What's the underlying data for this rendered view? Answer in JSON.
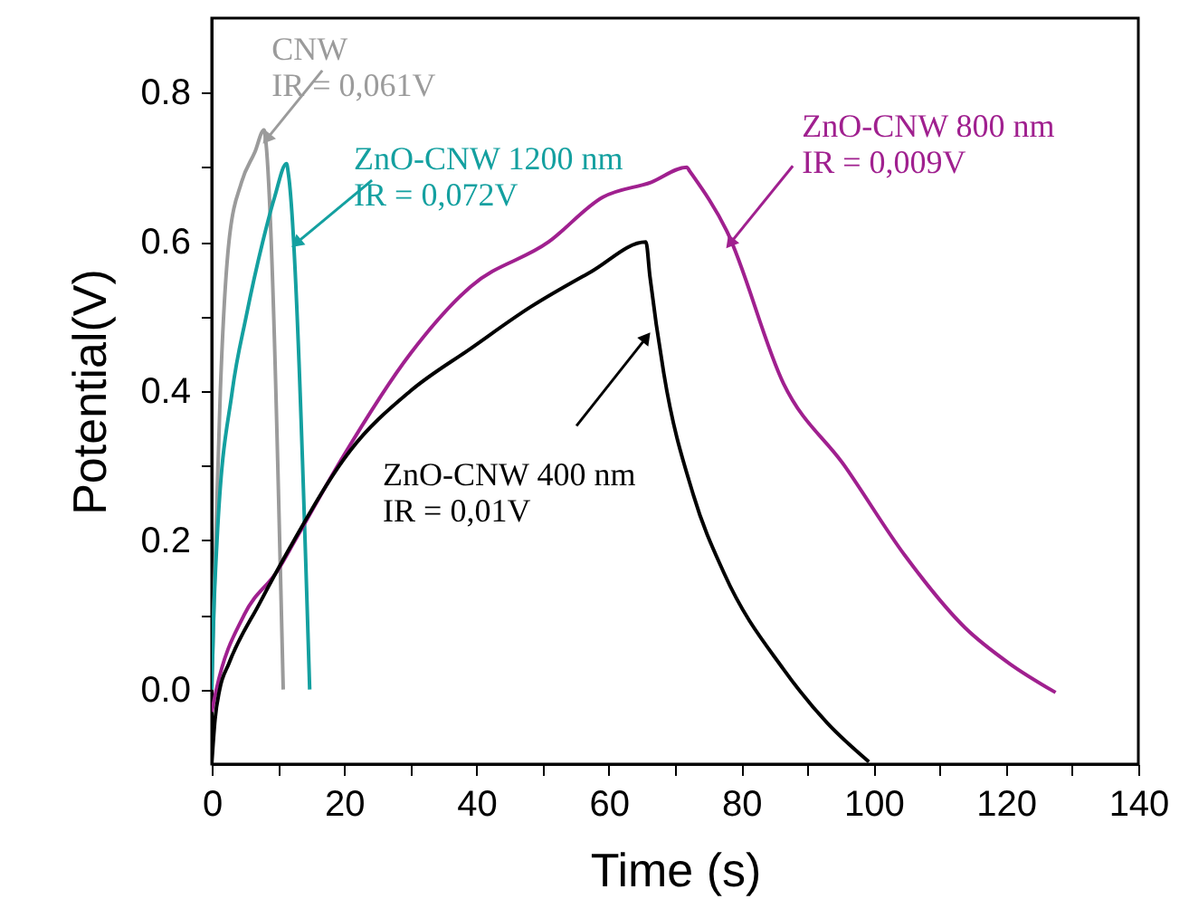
{
  "chart_data": {
    "type": "line",
    "xlabel": "Time (s)",
    "ylabel": "Potential(V)",
    "xlim": [
      0,
      140
    ],
    "ylim": [
      -0.1,
      0.9
    ],
    "xticks": [
      0,
      {
        "value": 10,
        "label": null
      },
      20,
      {
        "value": 30,
        "label": null
      },
      40,
      {
        "value": 50,
        "label": null
      },
      60,
      {
        "value": 70,
        "label": null
      },
      80,
      {
        "value": 90,
        "label": null
      },
      100,
      {
        "value": 110,
        "label": null
      },
      120,
      {
        "value": 130,
        "label": null
      },
      140
    ],
    "yticks": [
      {
        "value": 0,
        "label": "0.0"
      },
      {
        "value": 0.1,
        "label": null
      },
      {
        "value": 0.2,
        "label": "0.2"
      },
      {
        "value": 0.3,
        "label": null
      },
      {
        "value": 0.4,
        "label": "0.4"
      },
      {
        "value": 0.5,
        "label": null
      },
      {
        "value": 0.6,
        "label": "0.6"
      },
      {
        "value": 0.7,
        "label": null
      },
      {
        "value": 0.8,
        "label": "0.8"
      }
    ],
    "grid": false,
    "marker": "none",
    "line_style": "solid",
    "series": [
      {
        "color": "#9b9b9b",
        "x": [
          0,
          0.3,
          0.6,
          1.3,
          2.6,
          4.5,
          6.5,
          7.9,
          8.1,
          10.8
        ],
        "values": [
          0,
          0.1,
          0.2,
          0.4,
          0.6,
          0.68,
          0.72,
          0.75,
          0.74,
          0
        ]
      },
      {
        "color": "#14a0a0",
        "x": [
          0,
          0.3,
          0.8,
          3.1,
          5.2,
          7.7,
          9.5,
          11.3,
          11.6,
          14.8
        ],
        "values": [
          0,
          0.1,
          0.2,
          0.4,
          0.5,
          0.6,
          0.66,
          0.705,
          0.69,
          0
        ]
      },
      {
        "color": "#a0208f",
        "x": [
          0,
          0.7,
          4.9,
          10,
          12.6,
          19.5,
          30,
          39.1,
          50.9,
          59.1,
          66.4,
          71.8,
          72.2,
          77.8,
          86.4,
          95.6,
          104.7,
          113.8,
          120.5,
          127.5
        ],
        "values": [
          -0.03,
          0,
          0.1,
          0.16,
          0.2,
          0.307,
          0.45,
          0.54,
          0.6,
          0.66,
          0.68,
          0.7,
          0.695,
          0.615,
          0.41,
          0.3,
          0.18,
          0.083,
          0.035,
          -0.004
        ]
      },
      {
        "color": "#000000",
        "x": [
          0,
          0.5,
          1.2,
          2.6,
          7.2,
          11.8,
          20.9,
          30,
          39.1,
          48.2,
          57.3,
          65.6,
          66.2,
          68.3,
          72.8,
          77.4,
          86.4,
          93,
          99.3
        ],
        "values": [
          -0.1,
          -0.04,
          0,
          0.035,
          0.115,
          0.19,
          0.32,
          0.4,
          0.457,
          0.513,
          0.56,
          0.6,
          0.554,
          0.424,
          0.26,
          0.156,
          0.027,
          -0.045,
          -0.097
        ]
      }
    ],
    "annotations": [
      {
        "text": "CNW\nIR = 0,061V",
        "x": 8.5,
        "y": 0.74
      },
      {
        "text": "ZnO-CNW 1200 nm\nIR = 0,072V",
        "x": 13,
        "y": 0.6
      },
      {
        "text": "ZnO-CNW 800 nm\nIR = 0,009V",
        "x": 78.5,
        "y": 0.6
      },
      {
        "text": "ZnO-CNW 400 nm\nIR = 0,01V",
        "x": 65.5,
        "y": 0.47
      }
    ]
  }
}
